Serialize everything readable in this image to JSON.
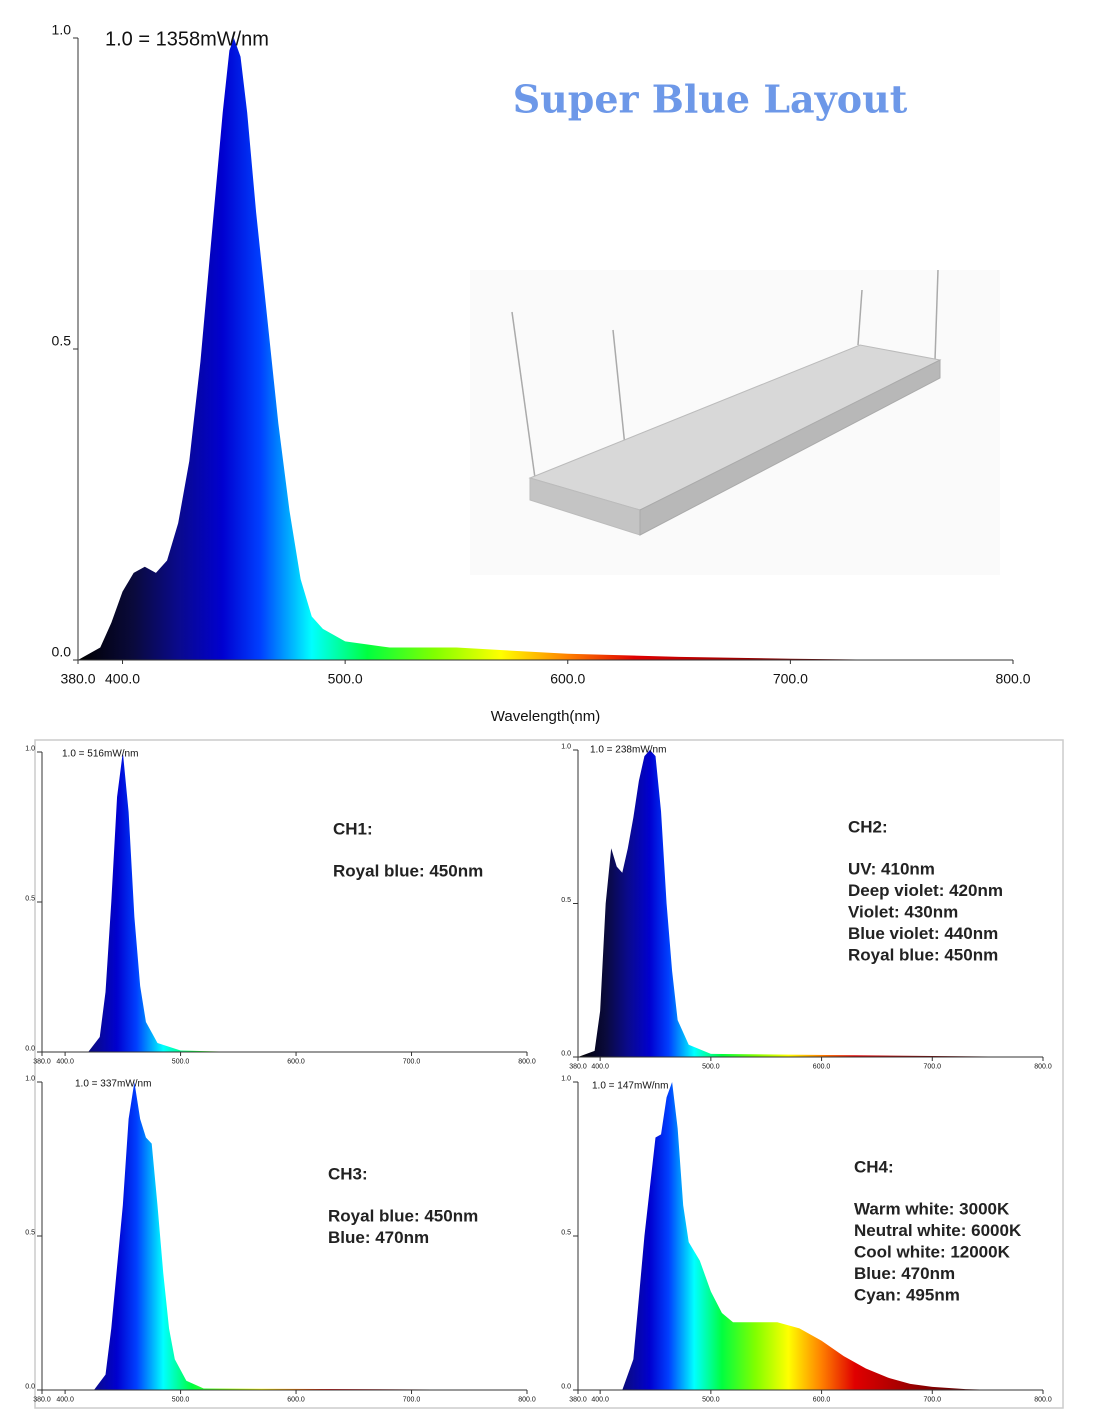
{
  "page_title": "Super Blue Layout",
  "chart_data": [
    {
      "type": "area",
      "annotation": "1.0 = 1358mW/nm",
      "x_label": "Wavelength(nm)",
      "x": [
        380,
        390,
        395,
        400,
        405,
        410,
        415,
        420,
        425,
        430,
        435,
        440,
        445,
        448,
        450,
        453,
        456,
        460,
        465,
        470,
        475,
        480,
        485,
        490,
        500,
        520,
        550,
        600,
        650,
        700,
        750,
        800
      ],
      "values": [
        0,
        0.02,
        0.06,
        0.11,
        0.14,
        0.15,
        0.14,
        0.16,
        0.22,
        0.32,
        0.48,
        0.68,
        0.88,
        0.98,
        1.0,
        0.97,
        0.88,
        0.72,
        0.55,
        0.38,
        0.24,
        0.13,
        0.07,
        0.05,
        0.03,
        0.02,
        0.02,
        0.01,
        0.005,
        0.002,
        0,
        0
      ],
      "xlim": [
        380,
        800
      ],
      "ylim": [
        0,
        1
      ],
      "xticks": [
        {
          "value": 380,
          "label": "380.0"
        },
        {
          "value": 400,
          "label": "400.0"
        },
        {
          "value": 500,
          "label": "500.0"
        },
        {
          "value": 600,
          "label": "600.0"
        },
        {
          "value": 700,
          "label": "700.0"
        },
        {
          "value": 800,
          "label": "800.0"
        }
      ],
      "yticks": [
        {
          "value": 0,
          "label": "0.0"
        },
        {
          "value": 0.5,
          "label": "0.5"
        },
        {
          "value": 1,
          "label": "1.0"
        }
      ]
    },
    {
      "type": "area",
      "annotation": "1.0 = 516mW/nm",
      "heading": "CH1:",
      "lines": [
        "Royal blue: 450nm"
      ],
      "x": [
        380,
        420,
        430,
        435,
        440,
        445,
        450,
        455,
        460,
        465,
        470,
        480,
        500,
        550,
        800
      ],
      "values": [
        0,
        0,
        0.05,
        0.2,
        0.5,
        0.85,
        1.0,
        0.8,
        0.45,
        0.22,
        0.1,
        0.03,
        0.005,
        0,
        0
      ],
      "xlim": [
        380,
        800
      ],
      "ylim": [
        0,
        1
      ],
      "xticks": [
        {
          "value": 380,
          "label": "380.0"
        },
        {
          "value": 400,
          "label": "400.0"
        },
        {
          "value": 500,
          "label": "500.0"
        },
        {
          "value": 600,
          "label": "600.0"
        },
        {
          "value": 700,
          "label": "700.0"
        },
        {
          "value": 800,
          "label": "800.0"
        }
      ],
      "yticks": [
        {
          "value": 0,
          "label": "0.0"
        },
        {
          "value": 0.5,
          "label": "0.5"
        },
        {
          "value": 1,
          "label": "1.0"
        }
      ]
    },
    {
      "type": "area",
      "annotation": "1.0 = 238mW/nm",
      "heading": "CH2:",
      "lines": [
        "UV: 410nm",
        "Deep violet: 420nm",
        "Violet: 430nm",
        "Blue violet: 440nm",
        "Royal blue: 450nm"
      ],
      "x": [
        380,
        395,
        400,
        405,
        410,
        415,
        420,
        425,
        430,
        435,
        440,
        445,
        450,
        455,
        460,
        465,
        470,
        480,
        500,
        800
      ],
      "values": [
        0,
        0.02,
        0.15,
        0.5,
        0.68,
        0.62,
        0.6,
        0.68,
        0.78,
        0.9,
        0.98,
        1.0,
        0.98,
        0.8,
        0.5,
        0.28,
        0.12,
        0.04,
        0.01,
        0
      ],
      "xlim": [
        380,
        800
      ],
      "ylim": [
        0,
        1
      ],
      "xticks": [
        {
          "value": 380,
          "label": "380.0"
        },
        {
          "value": 400,
          "label": "400.0"
        },
        {
          "value": 500,
          "label": "500.0"
        },
        {
          "value": 600,
          "label": "600.0"
        },
        {
          "value": 700,
          "label": "700.0"
        },
        {
          "value": 800,
          "label": "800.0"
        }
      ],
      "yticks": [
        {
          "value": 0,
          "label": "0.0"
        },
        {
          "value": 0.5,
          "label": "0.5"
        },
        {
          "value": 1,
          "label": "1.0"
        }
      ]
    },
    {
      "type": "area",
      "annotation": "1.0 = 337mW/nm",
      "heading": "CH3:",
      "lines": [
        "Royal blue: 450nm",
        "Blue: 470nm"
      ],
      "x": [
        380,
        425,
        435,
        440,
        450,
        455,
        460,
        465,
        470,
        475,
        480,
        485,
        490,
        495,
        505,
        520,
        800
      ],
      "values": [
        0,
        0,
        0.05,
        0.2,
        0.6,
        0.88,
        1.0,
        0.88,
        0.82,
        0.8,
        0.6,
        0.38,
        0.2,
        0.1,
        0.03,
        0.005,
        0
      ],
      "xlim": [
        380,
        800
      ],
      "ylim": [
        0,
        1
      ],
      "xticks": [
        {
          "value": 380,
          "label": "380.0"
        },
        {
          "value": 400,
          "label": "400.0"
        },
        {
          "value": 500,
          "label": "500.0"
        },
        {
          "value": 600,
          "label": "600.0"
        },
        {
          "value": 700,
          "label": "700.0"
        },
        {
          "value": 800,
          "label": "800.0"
        }
      ],
      "yticks": [
        {
          "value": 0,
          "label": "0.0"
        },
        {
          "value": 0.5,
          "label": "0.5"
        },
        {
          "value": 1,
          "label": "1.0"
        }
      ]
    },
    {
      "type": "area",
      "annotation": "1.0 = 147mW/nm",
      "heading": "CH4:",
      "lines": [
        "Warm white: 3000K",
        "Neutral white: 6000K",
        "Cool white: 12000K",
        "Blue: 470nm",
        "Cyan: 495nm"
      ],
      "x": [
        380,
        420,
        430,
        440,
        450,
        455,
        460,
        465,
        470,
        475,
        480,
        490,
        500,
        510,
        520,
        540,
        560,
        580,
        600,
        620,
        640,
        660,
        680,
        700,
        730,
        760,
        800
      ],
      "values": [
        0,
        0,
        0.1,
        0.5,
        0.82,
        0.83,
        0.95,
        1.0,
        0.85,
        0.6,
        0.48,
        0.42,
        0.32,
        0.25,
        0.22,
        0.22,
        0.22,
        0.2,
        0.16,
        0.11,
        0.07,
        0.04,
        0.02,
        0.01,
        0.003,
        0,
        0
      ],
      "xlim": [
        380,
        800
      ],
      "ylim": [
        0,
        1
      ],
      "xticks": [
        {
          "value": 380,
          "label": "380.0"
        },
        {
          "value": 400,
          "label": "400.0"
        },
        {
          "value": 500,
          "label": "500.0"
        },
        {
          "value": 600,
          "label": "600.0"
        },
        {
          "value": 700,
          "label": "700.0"
        },
        {
          "value": 800,
          "label": "800.0"
        }
      ],
      "yticks": [
        {
          "value": 0,
          "label": "0.0"
        },
        {
          "value": 0.5,
          "label": "0.5"
        },
        {
          "value": 1,
          "label": "1.0"
        }
      ]
    }
  ]
}
